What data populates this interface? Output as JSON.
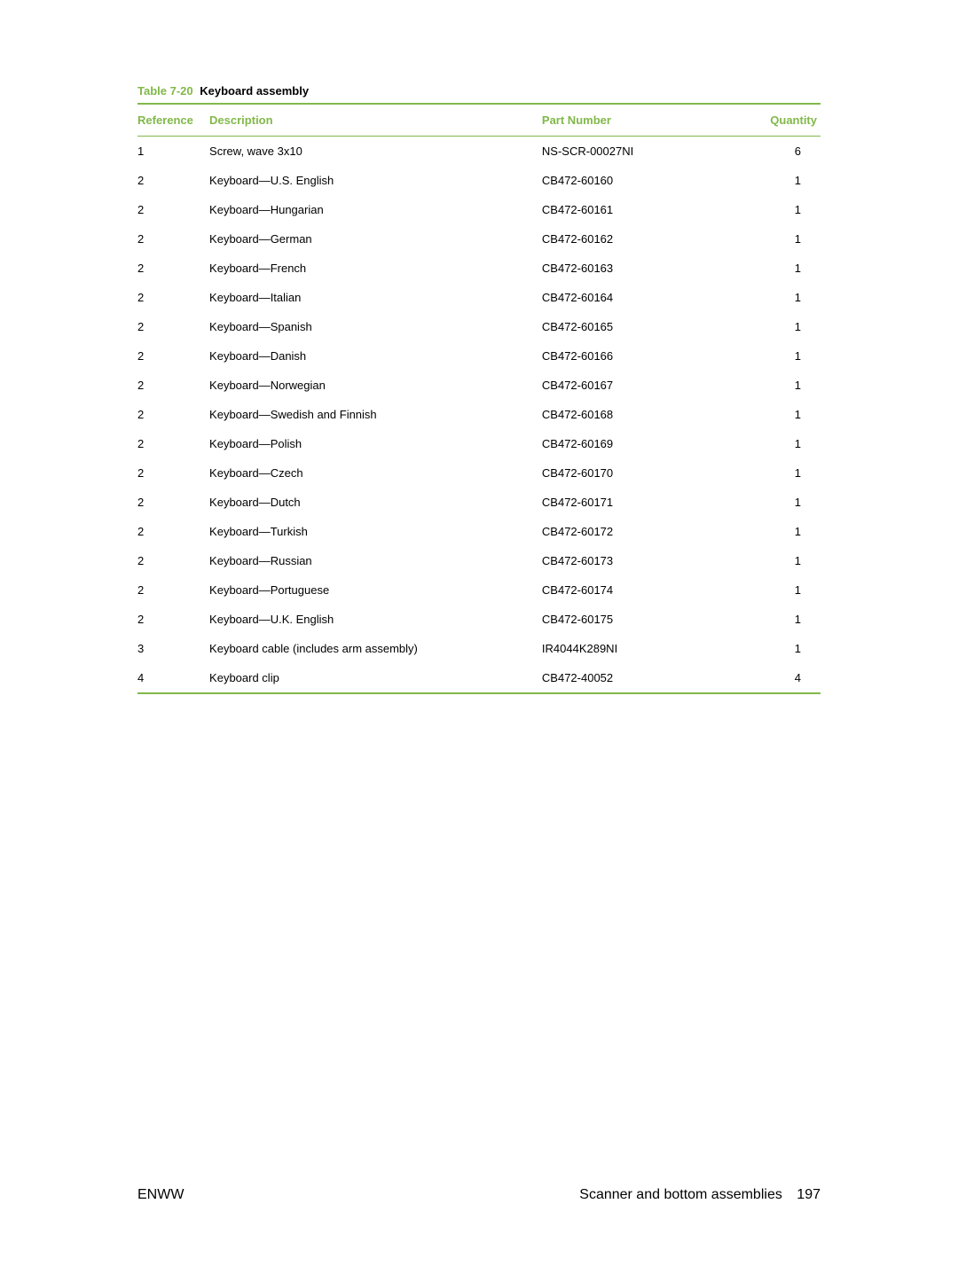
{
  "table": {
    "caption_number": "Table 7-20",
    "caption_title": "Keyboard assembly",
    "columns": {
      "reference": "Reference",
      "description": "Description",
      "part_number": "Part Number",
      "quantity": "Quantity"
    },
    "rows": [
      {
        "reference": "1",
        "description": "Screw, wave 3x10",
        "part_number": "NS-SCR-00027NI",
        "quantity": "6"
      },
      {
        "reference": "2",
        "description": "Keyboard—U.S. English",
        "part_number": "CB472-60160",
        "quantity": "1"
      },
      {
        "reference": "2",
        "description": "Keyboard—Hungarian",
        "part_number": "CB472-60161",
        "quantity": "1"
      },
      {
        "reference": "2",
        "description": "Keyboard—German",
        "part_number": "CB472-60162",
        "quantity": "1"
      },
      {
        "reference": "2",
        "description": "Keyboard—French",
        "part_number": "CB472-60163",
        "quantity": "1"
      },
      {
        "reference": "2",
        "description": "Keyboard—Italian",
        "part_number": "CB472-60164",
        "quantity": "1"
      },
      {
        "reference": "2",
        "description": "Keyboard—Spanish",
        "part_number": "CB472-60165",
        "quantity": "1"
      },
      {
        "reference": "2",
        "description": "Keyboard—Danish",
        "part_number": "CB472-60166",
        "quantity": "1"
      },
      {
        "reference": "2",
        "description": "Keyboard—Norwegian",
        "part_number": "CB472-60167",
        "quantity": "1"
      },
      {
        "reference": "2",
        "description": "Keyboard—Swedish and Finnish",
        "part_number": "CB472-60168",
        "quantity": "1"
      },
      {
        "reference": "2",
        "description": "Keyboard—Polish",
        "part_number": "CB472-60169",
        "quantity": "1"
      },
      {
        "reference": "2",
        "description": "Keyboard—Czech",
        "part_number": "CB472-60170",
        "quantity": "1"
      },
      {
        "reference": "2",
        "description": "Keyboard—Dutch",
        "part_number": "CB472-60171",
        "quantity": "1"
      },
      {
        "reference": "2",
        "description": "Keyboard—Turkish",
        "part_number": "CB472-60172",
        "quantity": "1"
      },
      {
        "reference": "2",
        "description": "Keyboard—Russian",
        "part_number": "CB472-60173",
        "quantity": "1"
      },
      {
        "reference": "2",
        "description": "Keyboard—Portuguese",
        "part_number": "CB472-60174",
        "quantity": "1"
      },
      {
        "reference": "2",
        "description": "Keyboard—U.K. English",
        "part_number": "CB472-60175",
        "quantity": "1"
      },
      {
        "reference": "3",
        "description": "Keyboard cable (includes arm assembly)",
        "part_number": "IR4044K289NI",
        "quantity": "1"
      },
      {
        "reference": "4",
        "description": "Keyboard clip",
        "part_number": "CB472-40052",
        "quantity": "4"
      }
    ]
  },
  "footer": {
    "left": "ENWW",
    "right_text": "Scanner and bottom assemblies",
    "page_number": "197"
  },
  "colors": {
    "accent": "#82b84a",
    "text": "#000000",
    "background": "#ffffff"
  }
}
